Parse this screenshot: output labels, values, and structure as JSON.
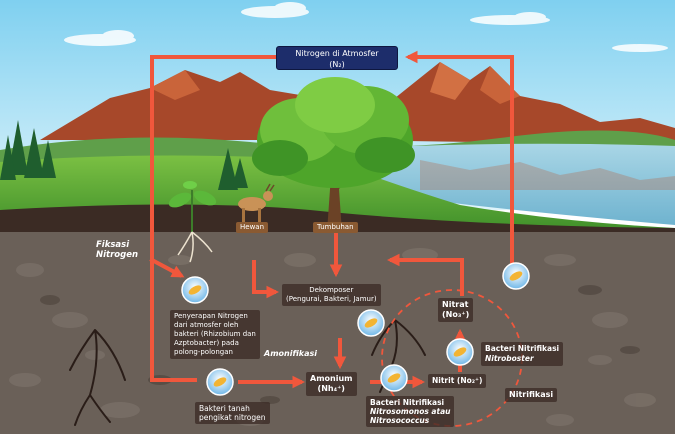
{
  "title": {
    "line1": "Nitrogen di Atmosfer",
    "line2": "(N₂)"
  },
  "labels": {
    "fiksasi_1": "Fiksasi",
    "fiksasi_2": "Nitrogen",
    "hewan": "Hewan",
    "tumbuhan": "Tumbuhan",
    "dekomposer_1": "Dekomposer",
    "dekomposer_2": "(Pengurai, Bakteri, Jamur)",
    "penyerapan": [
      "Penyerapan Nitrogen",
      "dari atmosfer oleh",
      "bakteri (Rhizobium dan",
      "Azptobacter) pada",
      "polong-polongan"
    ],
    "amonifikasi": "Amonifikasi",
    "amonium_1": "Amonium",
    "amonium_2": "(Nh₄⁺)",
    "nitrat_1": "Nitrat",
    "nitrat_2": "(No₃⁺)",
    "nitrit": "Nitrit (No₂⁺)",
    "bacteri_nitrobacter_1": "Bacteri Nitrifikasi",
    "bacteri_nitrobacter_2": "Nitroboster",
    "bacteri_nitrosomonas_1": "Bacteri Nitrifikasi",
    "bacteri_nitrosomonas_2": "Nitrosomonos atau",
    "bacteri_nitrosomonas_3": "Nitrosococcus",
    "nitrifikasi": "Nitrifikasi",
    "bakteri_tanah_1": "Bakteri tanah",
    "bakteri_tanah_2": "pengikat nitrogen"
  },
  "colors": {
    "arrow": "#f0573c",
    "sky": "#b9e6f7",
    "soil": "#6a6058",
    "title_bg": "#1d2d6b"
  }
}
